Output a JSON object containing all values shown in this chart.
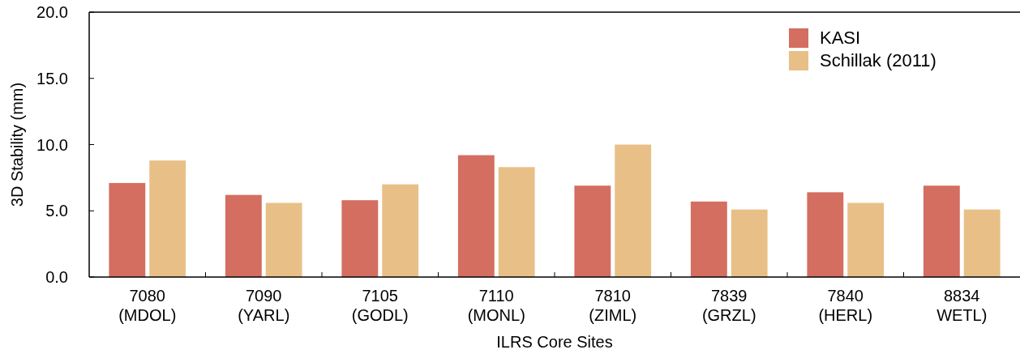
{
  "chart_data": {
    "type": "bar",
    "xlabel": "ILRS Core Sites",
    "ylabel": "3D Stability (mm)",
    "categories": [
      "7080\n(MDOL)",
      "7090\n(YARL)",
      "7105\n(GODL)",
      "7110\n(MONL)",
      "7810\n(ZIML)",
      "7839\n(GRZL)",
      "7840\n(HERL)",
      "8834\nWETL)"
    ],
    "series": [
      {
        "name": "KASI",
        "color": "#d46e60",
        "values": [
          7.1,
          6.2,
          5.8,
          9.2,
          6.9,
          5.7,
          6.4,
          6.9
        ]
      },
      {
        "name": "Schillak (2011)",
        "color": "#e8c087",
        "values": [
          8.8,
          5.6,
          7.0,
          8.3,
          10.0,
          5.1,
          5.6,
          5.1
        ]
      }
    ],
    "ylim": [
      0,
      20
    ],
    "yticks": [
      {
        "value": 0,
        "label": "0.0"
      },
      {
        "value": 5,
        "label": "5.0"
      },
      {
        "value": 10,
        "label": "10.0"
      },
      {
        "value": 15,
        "label": "15.0"
      },
      {
        "value": 20,
        "label": "20.0"
      }
    ],
    "grid": false,
    "legend": "top right"
  }
}
